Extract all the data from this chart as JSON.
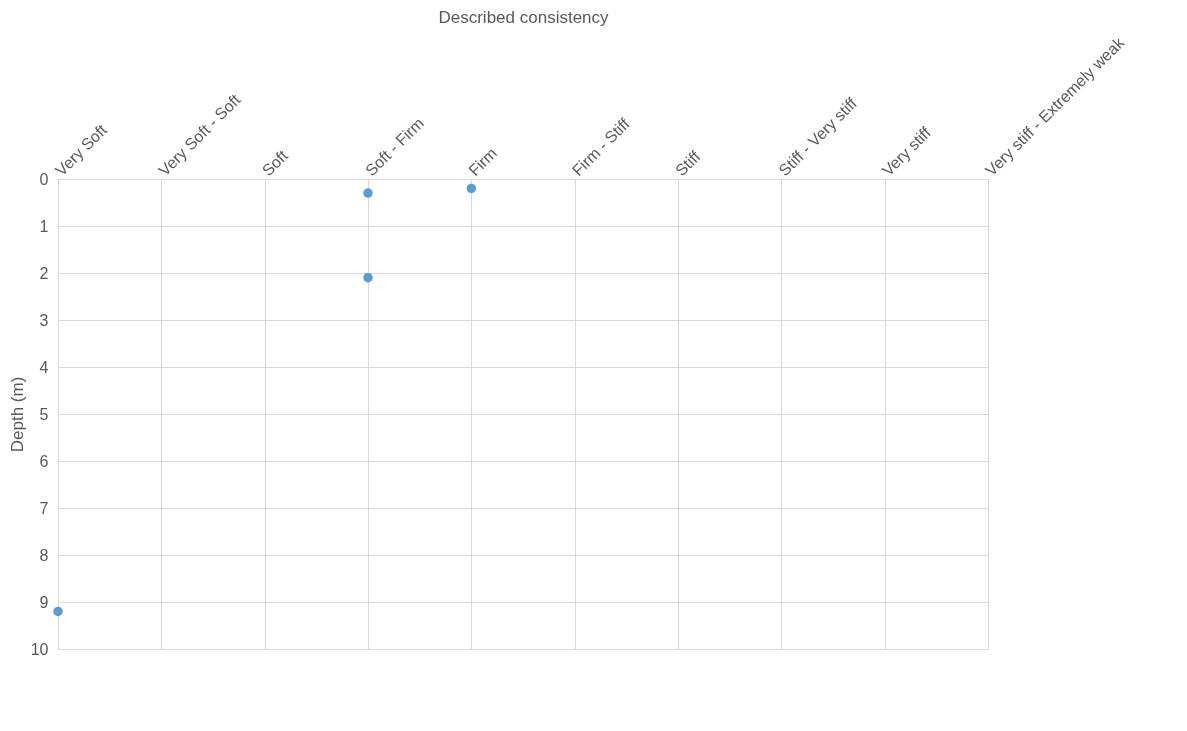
{
  "chart_data": {
    "type": "scatter",
    "xlabel": "Described consistency",
    "ylabel": "Depth (m)",
    "categories": [
      "Very Soft",
      "Very Soft - Soft",
      "Soft",
      "Soft - Firm",
      "Firm",
      "Firm - Stiff",
      "Stiff",
      "Stiff - Very stiff",
      "Very stiff",
      "Very stiff - Extremely weak"
    ],
    "series": [
      {
        "color": "#5b9bd5",
        "x": [
          "Very Soft",
          "Soft - Firm",
          "Soft - Firm",
          "Firm"
        ],
        "values": [
          9.2,
          0.3,
          2.1,
          0.2
        ]
      }
    ],
    "ylim": [
      10,
      0
    ],
    "yticks": [
      0,
      1,
      2,
      3,
      4,
      5,
      6,
      7,
      8,
      9,
      10
    ],
    "grid": true,
    "marker": "circle"
  }
}
